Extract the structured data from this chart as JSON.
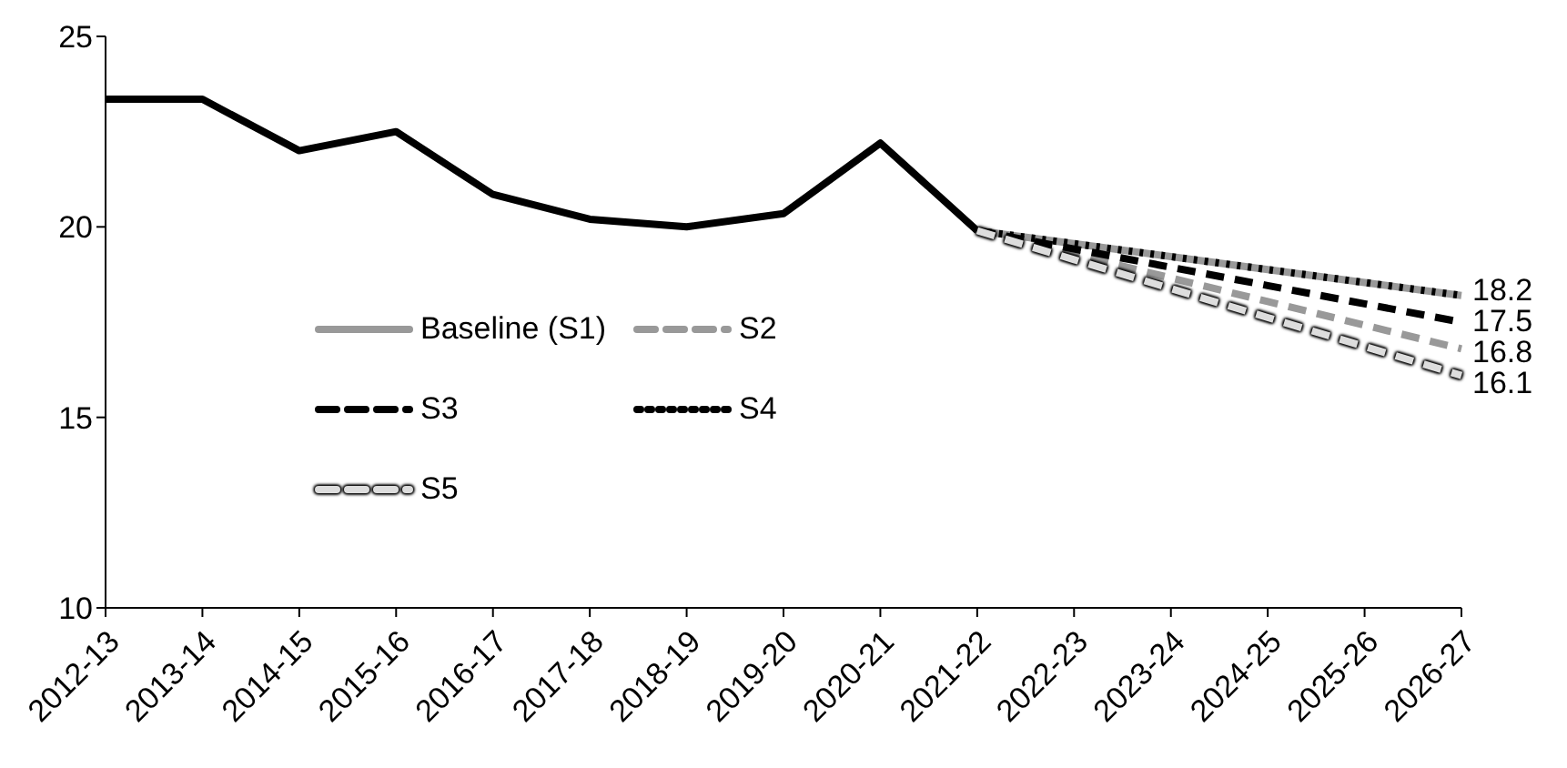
{
  "chart_data": {
    "type": "line",
    "categories": [
      "2012-13",
      "2013-14",
      "2014-15",
      "2015-16",
      "2016-17",
      "2017-18",
      "2018-19",
      "2019-20",
      "2020-21",
      "2021-22",
      "2022-23",
      "2023-24",
      "2024-25",
      "2025-26",
      "2026-27"
    ],
    "series": [
      {
        "color": "#000000",
        "line_style": "solid",
        "values": [
          23.35,
          23.35,
          22.0,
          22.5,
          20.85,
          20.2,
          20.0,
          20.35,
          22.2,
          19.9,
          null,
          null,
          null,
          null,
          null
        ]
      },
      {
        "name": "Baseline (S1)",
        "color": "#999999",
        "line_style": "solid",
        "values": [
          null,
          null,
          null,
          null,
          null,
          null,
          null,
          null,
          null,
          19.9,
          19.56,
          19.22,
          18.88,
          18.54,
          18.2
        ],
        "value_labels": [
          null,
          null,
          null,
          null,
          null,
          null,
          null,
          null,
          null,
          null,
          null,
          null,
          null,
          null,
          "18.2"
        ]
      },
      {
        "name": "S2",
        "color": "#999999",
        "line_style": "dashed",
        "values": [
          null,
          null,
          null,
          null,
          null,
          null,
          null,
          null,
          null,
          19.9,
          19.28,
          18.66,
          18.04,
          17.42,
          16.8
        ],
        "value_labels": [
          null,
          null,
          null,
          null,
          null,
          null,
          null,
          null,
          null,
          null,
          null,
          null,
          null,
          null,
          "16.8"
        ]
      },
      {
        "name": "S3",
        "color": "#000000",
        "line_style": "dashed",
        "values": [
          null,
          null,
          null,
          null,
          null,
          null,
          null,
          null,
          null,
          19.9,
          19.42,
          18.94,
          18.46,
          17.98,
          17.5
        ],
        "value_labels": [
          null,
          null,
          null,
          null,
          null,
          null,
          null,
          null,
          null,
          null,
          null,
          null,
          null,
          null,
          "17.5"
        ]
      },
      {
        "name": "S4",
        "color": "#000000",
        "line_style": "dotted",
        "values": [
          null,
          null,
          null,
          null,
          null,
          null,
          null,
          null,
          null,
          19.9,
          19.56,
          19.22,
          18.88,
          18.54,
          18.2
        ]
      },
      {
        "name": "S5",
        "color": "#dddddd",
        "line_style": "dashed",
        "values": [
          null,
          null,
          null,
          null,
          null,
          null,
          null,
          null,
          null,
          19.9,
          19.14,
          18.38,
          17.62,
          16.86,
          16.1
        ],
        "value_labels": [
          null,
          null,
          null,
          null,
          null,
          null,
          null,
          null,
          null,
          null,
          null,
          null,
          null,
          null,
          "16.1"
        ]
      }
    ],
    "ylim": [
      10,
      25
    ],
    "yticks": [
      10,
      15,
      20,
      25
    ],
    "grid": false,
    "legend": "center"
  }
}
